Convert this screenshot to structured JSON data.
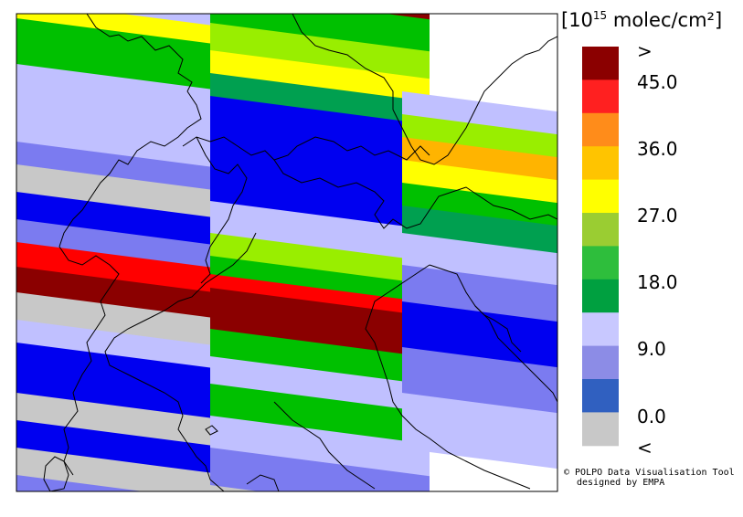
{
  "legend": {
    "title_prefix": "[10",
    "title_exp": "15",
    "title_suffix": " molec/cm²]",
    "labels": [
      ">",
      "45.0",
      "36.0",
      "27.0",
      "18.0",
      "9.0",
      "0.0",
      "<"
    ],
    "colors": [
      "#8b0000",
      "#ff2020",
      "#ff8c1a",
      "#ffc400",
      "#ffff00",
      "#9acd32",
      "#2ebe3c",
      "#00a040",
      "#c8c8ff",
      "#8c8ce6",
      "#3060c0",
      "#c8c8c8"
    ]
  },
  "credit": {
    "line1": "© POLPO Data Visualisation Tool",
    "line2": "designed by EMPA"
  },
  "palette": {
    "darkred": "#8b0000",
    "red": "#ff0000",
    "orange": "#ffb400",
    "yellow": "#ffff00",
    "lightgreen": "#99ee00",
    "green": "#00c000",
    "darkgreen": "#00a050",
    "blue": "#0000f0",
    "midblue": "#7b7bf0",
    "lightblue": "#c0c0ff",
    "gray": "#c8c8c8"
  }
}
